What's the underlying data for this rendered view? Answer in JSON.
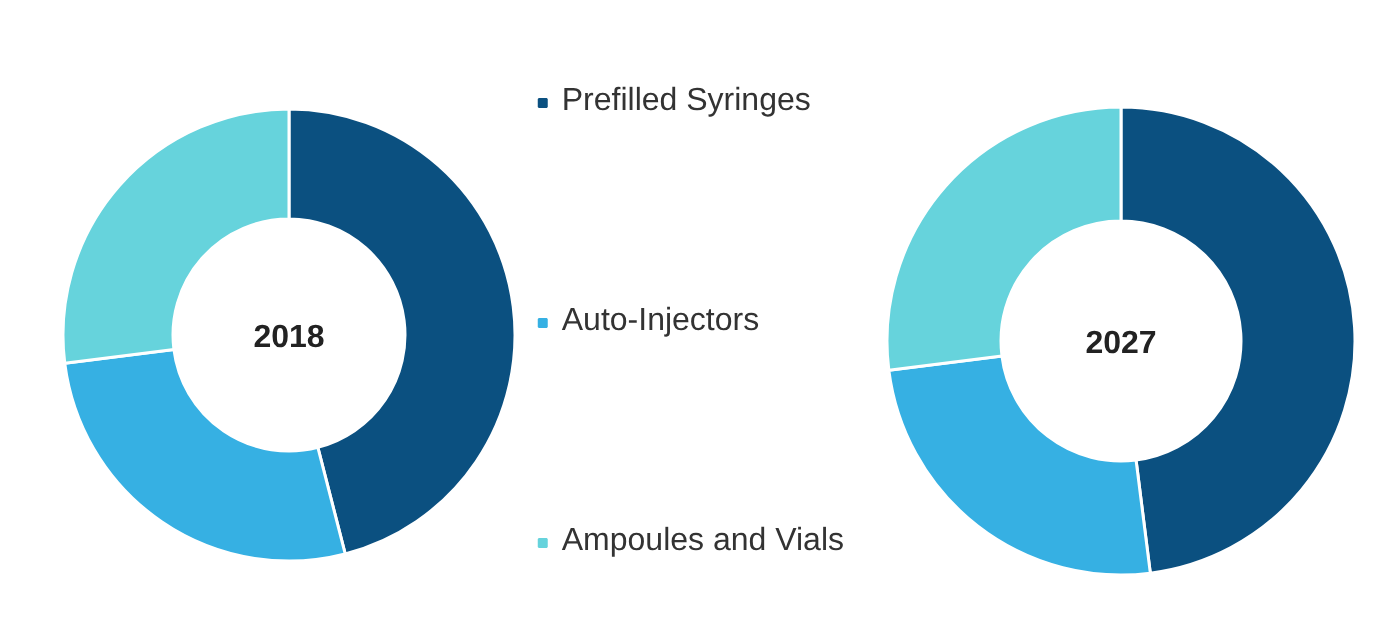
{
  "chart_data": [
    {
      "type": "donut",
      "title": "2018",
      "categories": [
        "Prefilled Syringes",
        "Auto-Injectors",
        "Ampoules and Vials"
      ],
      "values": [
        46,
        27,
        27
      ],
      "colors": [
        "#0b5080",
        "#36b0e3",
        "#66d3dc"
      ],
      "legend": "right"
    },
    {
      "type": "donut",
      "title": "2027",
      "categories": [
        null,
        null,
        null
      ],
      "values": [
        48,
        25,
        27
      ],
      "colors": [
        "#0b5080",
        "#36b0e3",
        "#66d3dc"
      ]
    }
  ]
}
